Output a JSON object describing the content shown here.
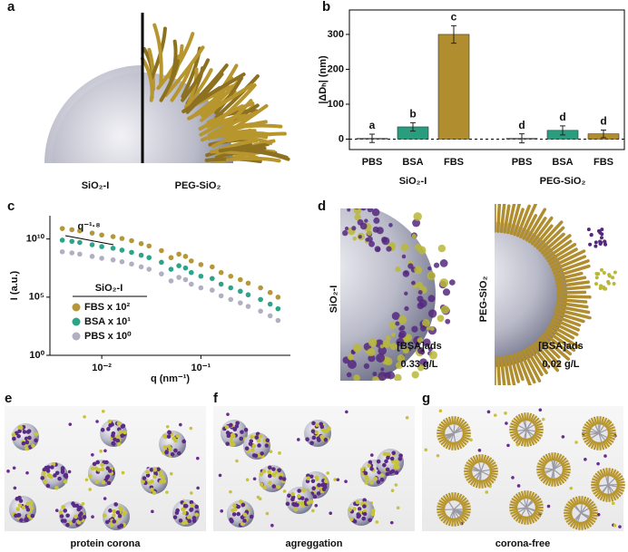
{
  "panel_labels": [
    "a",
    "b",
    "c",
    "d",
    "e",
    "f",
    "g"
  ],
  "panel_a": {
    "labels": [
      "SiO₂-I",
      "PEG-SiO₂"
    ]
  },
  "chart_data": [
    {
      "type": "bar",
      "categories": [
        "PBS",
        "BSA",
        "FBS",
        "PBS",
        "BSA",
        "FBS"
      ],
      "groups": [
        "SiO₂-I",
        "PEG-SiO₂"
      ],
      "values": [
        2,
        35,
        300,
        2,
        25,
        15
      ],
      "errors": [
        12,
        12,
        25,
        13,
        13,
        11
      ],
      "colors": [
        "#a9a9b8",
        "#2a9d7f",
        "#b08d2e",
        "#a9a9b8",
        "#2a9d7f",
        "#b08d2e"
      ],
      "annotations": [
        "a",
        "b",
        "c",
        "d",
        "d",
        "d"
      ],
      "y_label": "|ΔDₕ| (nm)",
      "ylim": [
        -30,
        370
      ],
      "yticks": [
        0,
        100,
        200,
        300
      ],
      "zero_line": true
    },
    {
      "type": "scatter",
      "log_x": true,
      "log_y": true,
      "x": [
        0.004,
        0.005,
        0.006,
        0.008,
        0.01,
        0.013,
        0.016,
        0.02,
        0.025,
        0.03,
        0.04,
        0.05,
        0.06,
        0.07,
        0.08,
        0.1,
        0.13,
        0.16,
        0.2,
        0.25,
        0.3,
        0.4,
        0.5,
        0.6
      ],
      "series": [
        {
          "name": "FBS x 10²",
          "color": "#b5973a",
          "values": [
            79000000000.0,
            63000000000.0,
            50000000000.0,
            32000000000.0,
            22000000000.0,
            16000000000.0,
            11000000000.0,
            7100000000.0,
            4000000000.0,
            2500000000.0,
            1000000000.0,
            250000000.0,
            500000000.0,
            320000000.0,
            130000000.0,
            63000000.0,
            40000000.0,
            13000000.0,
            6300000.0,
            3200000.0,
            1600000.0,
            630000.0,
            250000.0,
            100000.0
          ]
        },
        {
          "name": "BSA x 10¹",
          "color": "#2aa58a",
          "values": [
            7900000000.0,
            6300000000.0,
            5000000000.0,
            3200000000.0,
            2200000000.0,
            1600000000.0,
            1100000000.0,
            710000000.0,
            400000000.0,
            250000000.0,
            100000000.0,
            25000000.0,
            50000000.0,
            32000000.0,
            13000000.0,
            6300000.0,
            4000000.0,
            1300000.0,
            630000.0,
            320000.0,
            160000.0,
            63000.0,
            25000.0,
            10000.0
          ]
        },
        {
          "name": "PBS x 10⁰",
          "color": "#b0b0c2",
          "values": [
            790000000.0,
            630000000.0,
            500000000.0,
            320000000.0,
            220000000.0,
            160000000.0,
            110000000.0,
            71000000.0,
            40000000.0,
            25000000.0,
            10000000.0,
            2500000.0,
            5000000.0,
            3200000.0,
            1300000.0,
            630000.0,
            400000.0,
            130000.0,
            63000.0,
            32000.0,
            16000.0,
            6300.0,
            2500.0,
            1000.0
          ]
        }
      ],
      "xlim": [
        0.003,
        0.8
      ],
      "ylim": [
        1,
        1000000000000.0
      ],
      "xticks": [
        {
          "value": 0.01,
          "label": "10⁻²"
        },
        {
          "value": 0.1,
          "label": "10⁻¹"
        }
      ],
      "yticks": [
        {
          "value": 1,
          "label": "10⁰"
        },
        {
          "value": 100000,
          "label": "10⁵"
        },
        {
          "value": 10000000000,
          "label": "10¹⁰"
        }
      ],
      "x_label": "q (nm⁻¹)",
      "y_label": "I (a.u.)",
      "legend_title": "SiO₂-I",
      "annotation": "q⁻¹·⁸"
    }
  ],
  "panel_d": {
    "labels": [
      "SiO₂-I",
      "PEG-SiO₂"
    ],
    "concentration_labels": [
      "[BSA]ads",
      "[BSA]ads"
    ],
    "concentrations": [
      "0.33 g/L",
      "0.02 g/L"
    ]
  },
  "panel_captions": [
    "protein corona",
    "agreggation",
    "corona-free"
  ]
}
